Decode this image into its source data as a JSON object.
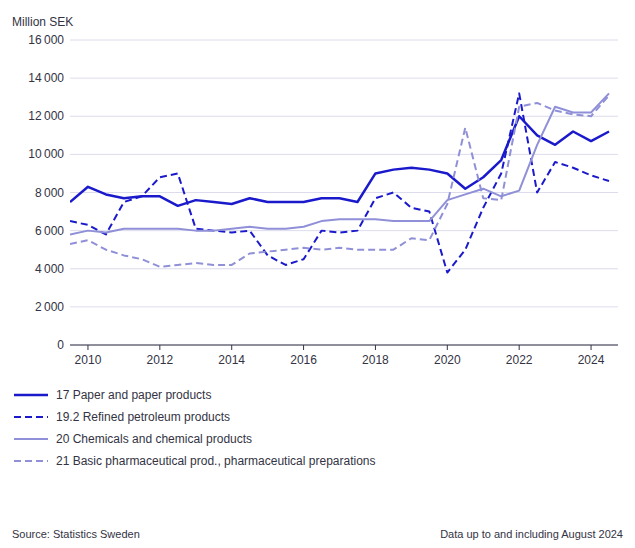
{
  "chart_data": {
    "type": "line",
    "ylabel": "Million SEK",
    "annotations": [
      "Source: Statistics Sweden",
      "Data up to and including August 2024"
    ],
    "x": [
      2009.5,
      2010.0,
      2010.5,
      2011.0,
      2011.5,
      2012.0,
      2012.5,
      2013.0,
      2013.5,
      2014.0,
      2014.5,
      2015.0,
      2015.5,
      2016.0,
      2016.5,
      2017.0,
      2017.5,
      2018.0,
      2018.5,
      2019.0,
      2019.5,
      2020.0,
      2020.5,
      2021.0,
      2021.5,
      2022.0,
      2022.5,
      2023.0,
      2023.5,
      2024.0,
      2024.5
    ],
    "xlim": [
      2009.5,
      2024.75
    ],
    "xticks": [
      2010,
      2012,
      2014,
      2016,
      2018,
      2020,
      2022,
      2024
    ],
    "ylim": [
      0,
      16000
    ],
    "yticks": [
      0,
      {
        "value": 2000,
        "label": "2 000"
      },
      {
        "value": 4000,
        "label": "4 000"
      },
      {
        "value": 6000,
        "label": "6 000"
      },
      {
        "value": 8000,
        "label": "8 000"
      },
      {
        "value": 10000,
        "label": "10 000"
      },
      {
        "value": 12000,
        "label": "12 000"
      },
      {
        "value": 14000,
        "label": "14 000"
      },
      {
        "value": 16000,
        "label": "16 000"
      }
    ],
    "grid": true,
    "legend": "bottom",
    "series": [
      {
        "name": "17 Paper and paper products",
        "color": "#1a1acc",
        "line_style": "solid",
        "values": [
          7500,
          8300,
          7900,
          7700,
          7800,
          7800,
          7300,
          7600,
          7500,
          7400,
          7700,
          7500,
          7500,
          7500,
          7700,
          7700,
          7500,
          9000,
          9200,
          9300,
          9200,
          9000,
          8200,
          8800,
          9700,
          12000,
          11000,
          10500,
          11200,
          10700,
          11200
        ]
      },
      {
        "name": "19.2 Refined petroleum products",
        "color": "#1a1acc",
        "line_style": "dashed",
        "values": [
          6500,
          6300,
          5800,
          7500,
          7800,
          8800,
          9000,
          6100,
          6000,
          5900,
          6000,
          4700,
          4200,
          4500,
          6000,
          5900,
          6000,
          7700,
          8000,
          7200,
          7000,
          3800,
          5000,
          7200,
          9000,
          13200,
          8000,
          9600,
          9300,
          8900,
          8600
        ]
      },
      {
        "name": "20 Chemicals and chemical products",
        "color": "#9090d8",
        "line_style": "solid",
        "values": [
          5800,
          6000,
          5900,
          6100,
          6100,
          6100,
          6100,
          6000,
          6000,
          6100,
          6200,
          6100,
          6100,
          6200,
          6500,
          6600,
          6600,
          6600,
          6500,
          6500,
          6500,
          7600,
          7900,
          8200,
          7800,
          8100,
          10500,
          12500,
          12200,
          12200,
          13200
        ]
      },
      {
        "name": "21 Basic pharmaceutical prod., pharmaceutical preparations",
        "color": "#9090d8",
        "line_style": "dashed",
        "values": [
          5300,
          5500,
          5000,
          4700,
          4500,
          4100,
          4200,
          4300,
          4200,
          4200,
          4800,
          4900,
          5000,
          5100,
          5000,
          5100,
          5000,
          5000,
          5000,
          5600,
          5500,
          7400,
          11400,
          7700,
          7600,
          12500,
          12700,
          12300,
          12100,
          12000,
          13100
        ]
      }
    ]
  }
}
